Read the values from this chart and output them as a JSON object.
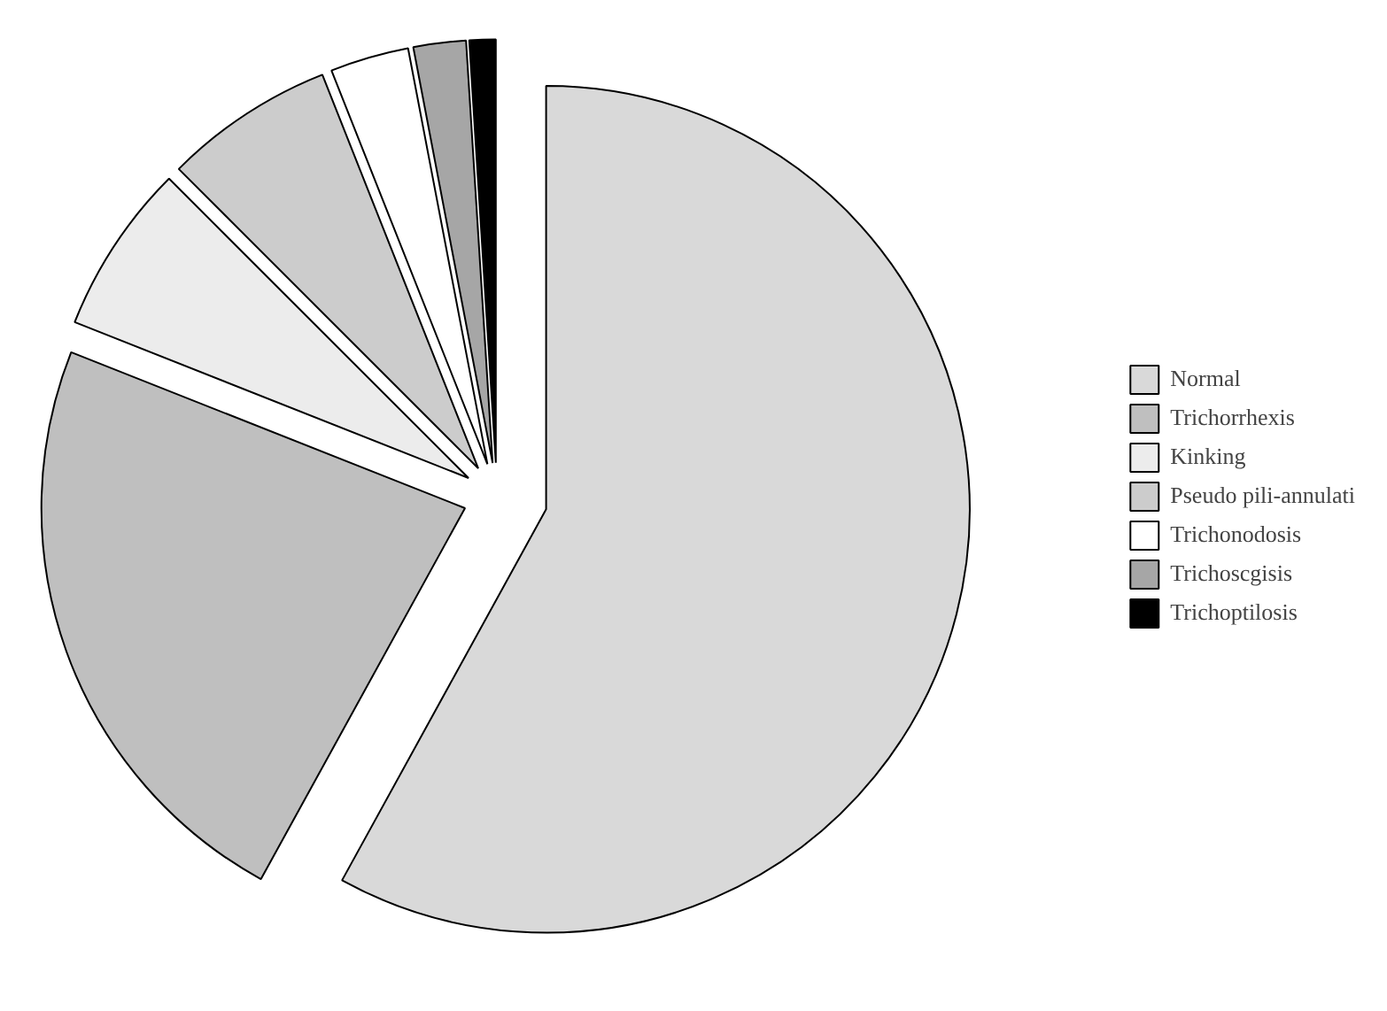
{
  "chart_data": {
    "type": "pie",
    "categories": [
      "Normal",
      "Trichorrhexis",
      "Kinking",
      "Pseudo pili-annulati",
      "Trichonodosis",
      "Trichoscgisis",
      "Trichoptilosis"
    ],
    "values": [
      58,
      23,
      6.5,
      6.5,
      3,
      2,
      1
    ],
    "colors": [
      "#d9d9d9",
      "#bfbfbf",
      "#ececec",
      "#cccccc",
      "#ffffff",
      "#a6a6a6",
      "#000000"
    ],
    "legend": "right"
  }
}
